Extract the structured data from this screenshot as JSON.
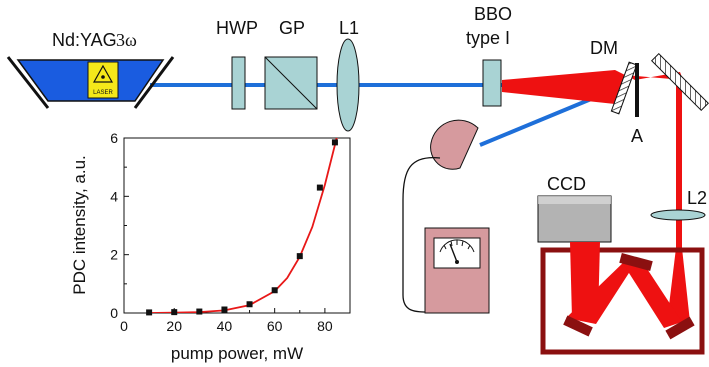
{
  "colors": {
    "pump_beam": "#1e6fd9",
    "pdc_beam": "#ee1111",
    "laser_body": "#1a5ce0",
    "optic_fill": "#a9d3d4",
    "detector_fill": "#d69a9e",
    "meter_fill": "#d69a9e",
    "chamber_frame": "#8b1010",
    "curve": "#e81818",
    "ccd_fill": "#b3b3b3"
  },
  "labels": {
    "laser": "Nd:YAG",
    "laser_harmonic": "3ω",
    "laser_sticker": "LASER",
    "hwp": "HWP",
    "gp": "GP",
    "l1": "L1",
    "bbo_line1": "BBO",
    "bbo_line2": "type I",
    "dm": "DM",
    "a": "A",
    "ccd": "CCD",
    "l2": "L2"
  },
  "chart_data": {
    "type": "scatter",
    "xlabel": "pump power, mW",
    "ylabel": "PDC intensity, a.u.",
    "xlim": [
      0,
      90
    ],
    "ylim": [
      0,
      6
    ],
    "xticks": [
      0,
      20,
      40,
      60,
      80
    ],
    "yticks": [
      0,
      2,
      4,
      6
    ],
    "x": [
      10,
      20,
      30,
      40,
      50,
      60,
      70,
      78,
      84
    ],
    "y": [
      0.02,
      0.03,
      0.05,
      0.12,
      0.3,
      0.78,
      1.95,
      4.3,
      5.85
    ],
    "fit": {
      "type": "line",
      "x": [
        10,
        20,
        30,
        40,
        50,
        60,
        65,
        70,
        75,
        80,
        85,
        87
      ],
      "y": [
        0.0,
        0.01,
        0.03,
        0.09,
        0.27,
        0.75,
        1.2,
        1.93,
        2.95,
        4.4,
        6.1,
        6.9
      ]
    }
  }
}
